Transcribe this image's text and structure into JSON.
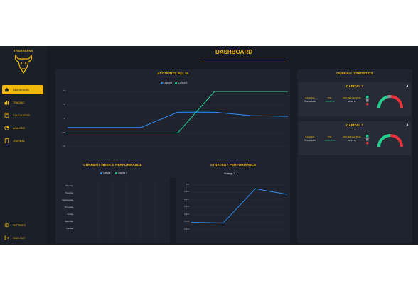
{
  "app": {
    "logo_text": "TRADHLENS",
    "page_title": "DASHBOARD"
  },
  "sidebar": {
    "items": [
      {
        "label": "DASHBOARD",
        "icon": "home-icon",
        "active": true
      },
      {
        "label": "TRADING",
        "icon": "chart-icon",
        "active": false
      },
      {
        "label": "CALCULATOR",
        "icon": "calculator-icon",
        "active": false
      },
      {
        "label": "ANALYSIS",
        "icon": "pie-icon",
        "active": false
      },
      {
        "label": "JOURNAL",
        "icon": "book-icon",
        "active": false
      }
    ],
    "bottom_items": [
      {
        "label": "SETTINGS",
        "icon": "gear-icon"
      },
      {
        "label": "SIGN OUT",
        "icon": "signout-icon"
      }
    ]
  },
  "pnl_card": {
    "title": "ACCOUNTS P&L %",
    "legend": [
      "Capital 1",
      "Capital 2"
    ],
    "y_ticks": [
      "3%",
      "2%",
      "1%",
      "0%",
      "-1%"
    ]
  },
  "week_card": {
    "title": "CURRENT WEEK'S PERFORMANCE",
    "legend": [
      "Capital 1",
      "Capital 2"
    ],
    "days": [
      "Monday",
      "Tuesday",
      "Wednesday",
      "Thursday",
      "Friday",
      "Saturday",
      "Sunday"
    ]
  },
  "strategy_card": {
    "title": "STRATEGY PERFORMANCE",
    "selected_strategy": "Strategy 1",
    "y_ticks": [
      "1%",
      "0.8%",
      "0.6%",
      "0.4%",
      "0.2%",
      "0.0%",
      "-0.2%"
    ]
  },
  "stats": {
    "title": "OVERALL STATISTICS",
    "accounts": [
      {
        "name": "CAPITAL 1",
        "balance_label": "BALANCE",
        "balance": "₹10,126.60",
        "pnl_label": "P&L",
        "pnl": "126.60 %",
        "win_label": "WIN PERCENTAGE",
        "win": "42.86 %"
      },
      {
        "name": "CAPITAL 2",
        "balance_label": "BALANCE",
        "balance": "₹12,256.35",
        "pnl_label": "P&L",
        "pnl": "2256.35 %",
        "win_label": "WIN PERCENTAGE",
        "win": "66.67 %"
      }
    ]
  },
  "colors": {
    "accent": "#f0b90b",
    "capital1": "#2f8df5",
    "capital2": "#1fd18e",
    "loss": "#e8323c",
    "neutral": "#8a8f99"
  },
  "chart_data": [
    {
      "type": "line",
      "title": "ACCOUNTS P&L %",
      "x": [
        0,
        1,
        2,
        3,
        4,
        5,
        6
      ],
      "series": [
        {
          "name": "Capital 1",
          "values": [
            0.4,
            0.4,
            0.4,
            1.5,
            1.5,
            1.25,
            1.2
          ]
        },
        {
          "name": "Capital 2",
          "values": [
            0,
            0,
            0,
            0,
            3,
            3,
            3
          ]
        }
      ],
      "ylim": [
        -1,
        3
      ]
    },
    {
      "type": "line",
      "title": "STRATEGY PERFORMANCE",
      "x": [
        0,
        1,
        2,
        3
      ],
      "series": [
        {
          "name": "Strategy 1",
          "values": [
            0,
            -0.02,
            0.9,
            0.75
          ]
        }
      ],
      "ylim": [
        -0.2,
        1
      ]
    }
  ]
}
